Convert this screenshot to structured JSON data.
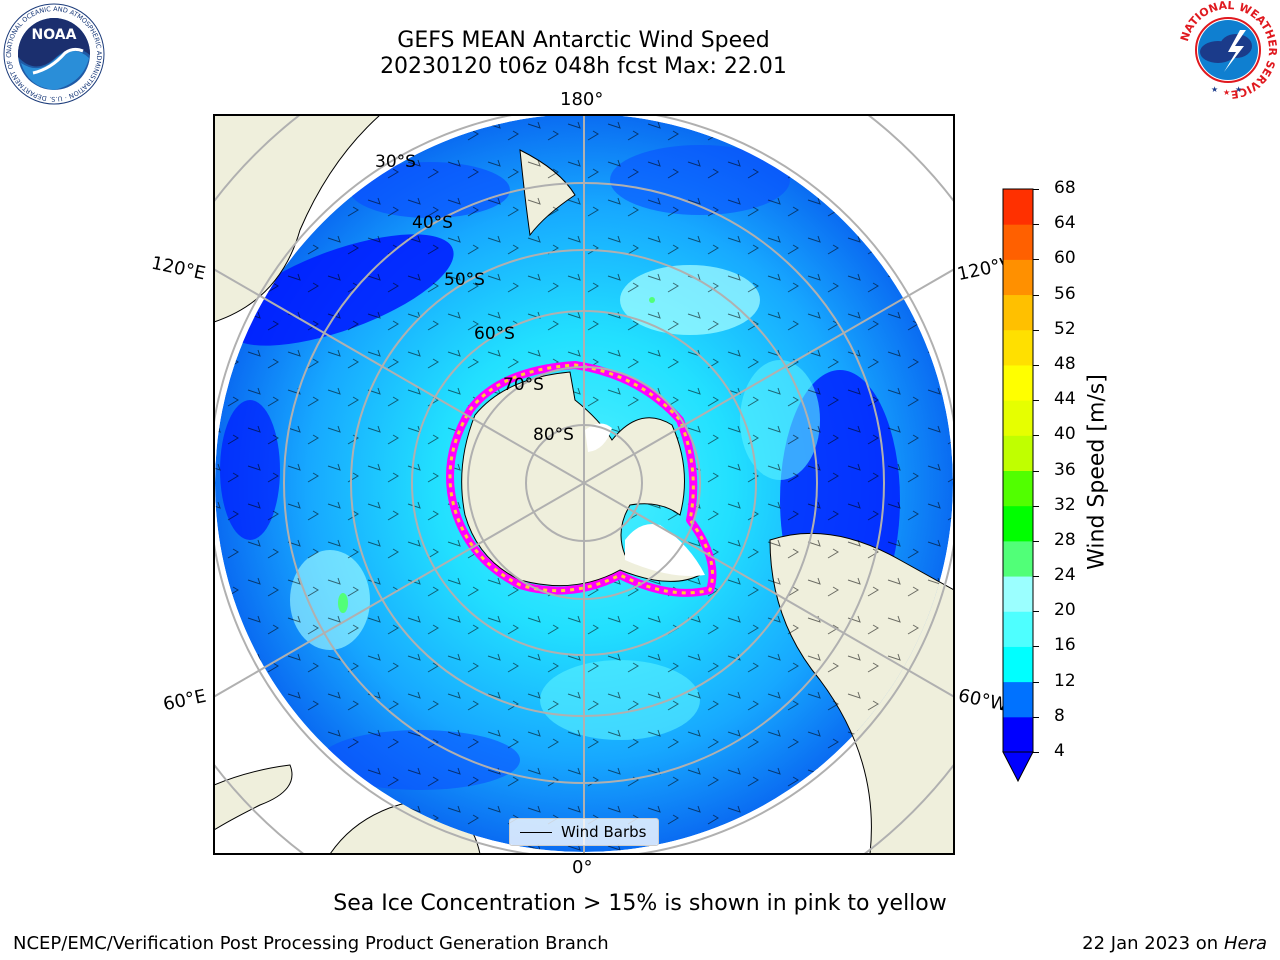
{
  "title": {
    "line1": "GEFS MEAN Antarctic Wind Speed",
    "line2": "20230120 t06z 048h fcst   Max: 22.01"
  },
  "map": {
    "projection": "south-polar-stereographic",
    "longitude_labels": [
      "180°",
      "120°E",
      "120°W",
      "60°E",
      "60°W",
      "0°"
    ],
    "latitude_labels": [
      "30°S",
      "40°S",
      "50°S",
      "60°S",
      "70°S",
      "80°S"
    ],
    "legend_label": "Wind Barbs",
    "land_color": "#efefdc",
    "sea_ice_colors": [
      "#ff00ff",
      "#ff9900",
      "#ffff00",
      "#ffffff"
    ]
  },
  "colorbar": {
    "label": "Wind Speed [m/s]",
    "ticks": [
      "4",
      "8",
      "12",
      "16",
      "20",
      "24",
      "28",
      "32",
      "36",
      "40",
      "44",
      "48",
      "52",
      "56",
      "60",
      "64",
      "68"
    ],
    "colors": [
      "#0000ff",
      "#0072ff",
      "#00ffff",
      "#4effff",
      "#9bffff",
      "#51ff78",
      "#00ff00",
      "#51ff00",
      "#c0ff00",
      "#e6ff00",
      "#ffff00",
      "#ffe000",
      "#ffc000",
      "#ff9000",
      "#ff6000",
      "#ff3000",
      "#ff0000"
    ]
  },
  "caption": "Sea Ice Concentration > 15% is shown in pink to yellow",
  "footer": {
    "left": "NCEP/EMC/Verification Post Processing Product Generation Branch",
    "date": "22 Jan 2023 on ",
    "host": "Hera"
  },
  "logos": {
    "noaa_text": "NOAA",
    "noaa_ring_text": "NATIONAL OCEANIC AND ATMOSPHERIC ADMINISTRATION · U.S. DEPARTMENT OF COMMERCE",
    "nws_ring_text": "NATIONAL WEATHER SERVICE"
  }
}
